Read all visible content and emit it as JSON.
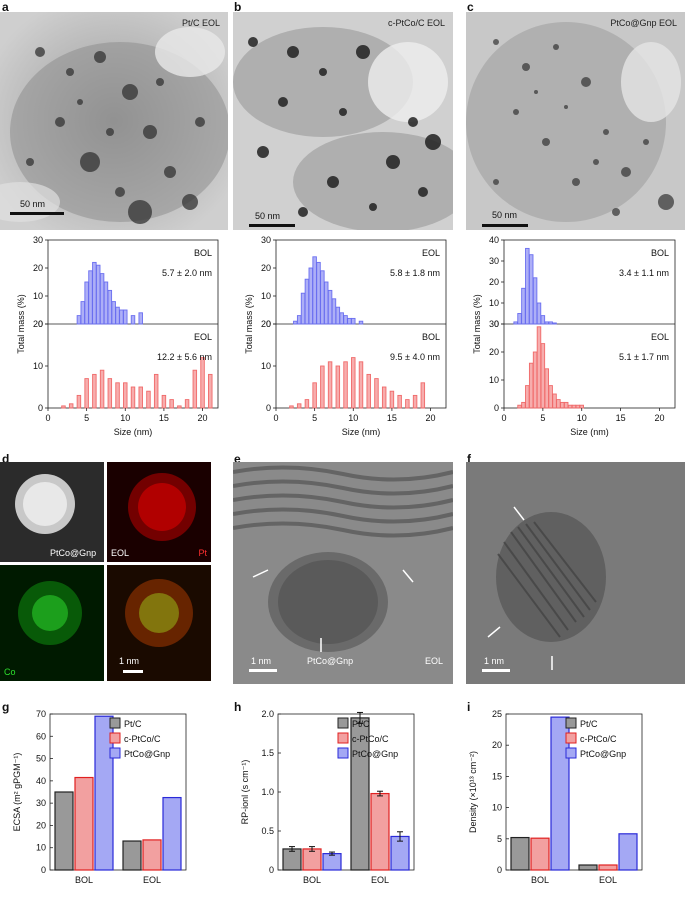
{
  "panels": {
    "a": {
      "letter": "a",
      "label": "Pt/C EOL",
      "scale": "50 nm"
    },
    "b": {
      "letter": "b",
      "label": "c-PtCo/C EOL",
      "scale": "50 nm"
    },
    "c": {
      "letter": "c",
      "label": "PtCo@Gnp EOL",
      "scale": "50 nm"
    },
    "d": {
      "letter": "d",
      "tl": "PtCo@Gnp",
      "tr": "EOL",
      "tr_el": "Pt",
      "bl": "Co",
      "scale": "1 nm"
    },
    "e": {
      "letter": "e",
      "scale": "1 nm",
      "bottom": "PtCo@Gnp",
      "br": "EOL"
    },
    "f": {
      "letter": "f",
      "scale": "1 nm"
    },
    "g": {
      "letter": "g"
    },
    "h": {
      "letter": "h"
    },
    "i": {
      "letter": "i"
    }
  },
  "chart_data": [
    {
      "id": "hist-a",
      "type": "bar",
      "xlabel": "Size (nm)",
      "ylabel": "Total mass (%)",
      "x_ticks": [
        0,
        5,
        10,
        15,
        20
      ],
      "xlim": [
        0,
        22
      ],
      "top": {
        "label": "BOL",
        "stat": "5.7 ± 2.0 nm",
        "ylim": [
          0,
          30
        ],
        "yticks": [
          0,
          10,
          20,
          30
        ],
        "color": "#6a6ef0",
        "centers": [
          4,
          4.5,
          5,
          5.5,
          6,
          6.5,
          7,
          7.5,
          8,
          8.5,
          9,
          9.5,
          10,
          11,
          12
        ],
        "values": [
          3,
          8,
          15,
          19,
          22,
          21,
          18,
          15,
          12,
          8,
          6,
          5,
          5,
          3,
          4
        ]
      },
      "bottom": {
        "label": "EOL",
        "stat": "12.2 ± 5.6 nm",
        "ylim": [
          0,
          20
        ],
        "yticks": [
          0,
          10,
          20
        ],
        "color": "#f06a6a",
        "centers": [
          2,
          3,
          4,
          5,
          6,
          7,
          8,
          9,
          10,
          11,
          12,
          13,
          14,
          15,
          16,
          17,
          18,
          19,
          20,
          21
        ],
        "values": [
          0.5,
          1,
          3,
          7,
          8,
          9,
          7,
          6,
          6,
          5,
          5,
          4,
          8,
          3,
          2,
          0.5,
          2,
          9,
          12,
          8
        ]
      }
    },
    {
      "id": "hist-b",
      "type": "bar",
      "xlabel": "Size (nm)",
      "ylabel": "Total mass (%)",
      "x_ticks": [
        0,
        5,
        10,
        15,
        20
      ],
      "xlim": [
        0,
        22
      ],
      "top": {
        "label": "EOL",
        "stat": "5.8 ± 1.8 nm",
        "ylim": [
          0,
          30
        ],
        "yticks": [
          0,
          10,
          20,
          30
        ],
        "color": "#6a6ef0",
        "centers": [
          2.5,
          3,
          3.5,
          4,
          4.5,
          5,
          5.5,
          6,
          6.5,
          7,
          7.5,
          8,
          8.5,
          9,
          9.5,
          10,
          11
        ],
        "values": [
          1,
          3,
          11,
          16,
          20,
          24,
          22,
          19,
          15,
          12,
          9,
          6,
          4,
          3,
          2,
          2,
          1
        ]
      },
      "bottom": {
        "label": "BOL",
        "stat": "9.5 ± 4.0 nm",
        "ylim": [
          0,
          20
        ],
        "yticks": [
          0,
          10,
          20
        ],
        "color": "#f06a6a",
        "centers": [
          2,
          3,
          4,
          5,
          6,
          7,
          8,
          9,
          10,
          11,
          12,
          13,
          14,
          15,
          16,
          17,
          18,
          19
        ],
        "values": [
          0.5,
          1,
          2,
          6,
          10,
          11,
          10,
          11,
          12,
          11,
          8,
          7,
          5,
          4,
          3,
          2,
          3,
          6
        ]
      }
    },
    {
      "id": "hist-c",
      "type": "bar",
      "xlabel": "Size (nm)",
      "ylabel": "Total mass (%)",
      "x_ticks": [
        0,
        5,
        10,
        15,
        20
      ],
      "xlim": [
        0,
        22
      ],
      "top": {
        "label": "BOL",
        "stat": "3.4 ± 1.1 nm",
        "ylim": [
          0,
          40
        ],
        "yticks": [
          0,
          10,
          20,
          30,
          40
        ],
        "color": "#6a6ef0",
        "centers": [
          1.5,
          2,
          2.5,
          3,
          3.5,
          4,
          4.5,
          5,
          5.5,
          6,
          6.5
        ],
        "values": [
          1,
          5,
          17,
          36,
          33,
          22,
          10,
          4,
          1,
          1,
          0.5
        ]
      },
      "bottom": {
        "label": "EOL",
        "stat": "5.1 ± 1.7 nm",
        "ylim": [
          0,
          30
        ],
        "yticks": [
          0,
          10,
          20,
          30
        ],
        "color": "#f06a6a",
        "centers": [
          2,
          2.5,
          3,
          3.5,
          4,
          4.5,
          5,
          5.5,
          6,
          6.5,
          7,
          7.5,
          8,
          8.5,
          9,
          9.5,
          10
        ],
        "values": [
          1,
          2,
          8,
          16,
          20,
          29,
          23,
          14,
          8,
          5,
          3,
          2,
          2,
          1,
          1,
          1,
          1
        ]
      }
    },
    {
      "id": "bar-g",
      "type": "bar",
      "ylabel": "ECSA (m² gPGM⁻¹)",
      "categories": [
        "BOL",
        "EOL"
      ],
      "ylim": [
        0,
        70
      ],
      "yticks": [
        0,
        10,
        20,
        30,
        40,
        50,
        60,
        70
      ],
      "series": [
        {
          "name": "Pt/C",
          "color": "#999999",
          "stroke": "#222222",
          "values": [
            35,
            13
          ]
        },
        {
          "name": "c-PtCo/C",
          "color": "#f2a0a0",
          "stroke": "#e02020",
          "values": [
            41.5,
            13.5
          ]
        },
        {
          "name": "PtCo@Gnp",
          "color": "#a4a8f4",
          "stroke": "#2a2ad8",
          "values": [
            69,
            32.5
          ]
        }
      ]
    },
    {
      "id": "bar-h",
      "type": "bar",
      "ylabel": "RP-ionl (s cm⁻¹)",
      "categories": [
        "BOL",
        "EOL"
      ],
      "ylim": [
        0,
        2.0
      ],
      "yticks": [
        0,
        0.5,
        1.0,
        1.5,
        2.0
      ],
      "yticklabels": [
        "0",
        "0.5",
        "1.0",
        "1.5",
        "2.0"
      ],
      "series": [
        {
          "name": "Pt/C",
          "color": "#999999",
          "stroke": "#222222",
          "values": [
            0.27,
            1.95
          ],
          "err": [
            0.03,
            0.07
          ]
        },
        {
          "name": "c-PtCo/C",
          "color": "#f2a0a0",
          "stroke": "#e02020",
          "values": [
            0.27,
            0.98
          ],
          "err": [
            0.03,
            0.03
          ]
        },
        {
          "name": "PtCo@Gnp",
          "color": "#a4a8f4",
          "stroke": "#2a2ad8",
          "values": [
            0.21,
            0.43
          ],
          "err": [
            0.02,
            0.06
          ]
        }
      ]
    },
    {
      "id": "bar-i",
      "type": "bar",
      "ylabel": "Density (×10¹³ cm⁻²)",
      "categories": [
        "BOL",
        "EOL"
      ],
      "ylim": [
        0,
        25
      ],
      "yticks": [
        0,
        5,
        10,
        15,
        20,
        25
      ],
      "series": [
        {
          "name": "Pt/C",
          "color": "#999999",
          "stroke": "#222222",
          "values": [
            5.2,
            0.8
          ]
        },
        {
          "name": "c-PtCo/C",
          "color": "#f2a0a0",
          "stroke": "#e02020",
          "values": [
            5.1,
            0.8
          ]
        },
        {
          "name": "PtCo@Gnp",
          "color": "#a4a8f4",
          "stroke": "#2a2ad8",
          "values": [
            24.5,
            5.8
          ]
        }
      ]
    }
  ]
}
